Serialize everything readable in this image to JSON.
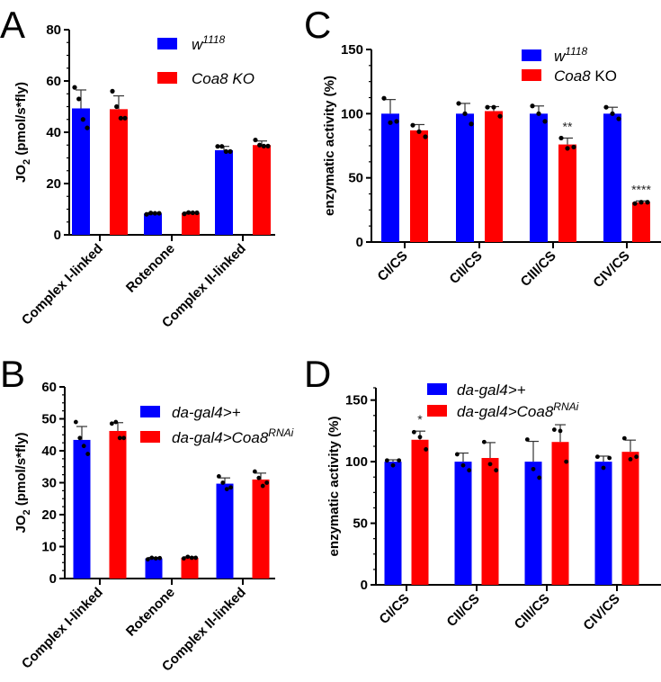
{
  "colors": {
    "control": "#0000ff",
    "mutant": "#ff0000",
    "points": "#000000"
  },
  "chart_data": [
    {
      "panel": "A",
      "type": "bar",
      "ylabel": "JO2 (pmol/s*fly)",
      "ylabel_main": "JO",
      "ylabel_sub": "2",
      "ylabel_rest": " (pmol/s*fly)",
      "ylim": [
        0,
        80
      ],
      "yticks": [
        0,
        20,
        40,
        60,
        80
      ],
      "categories": [
        "Complex I-linked",
        "Rotenone",
        "Complex II-linked"
      ],
      "legend_position": "top-center",
      "series": [
        {
          "name": "w1118",
          "legend": {
            "text": "w",
            "sup": "1118",
            "rest": ""
          },
          "values": [
            49.3,
            8.3,
            33.0
          ],
          "errors": [
            7.2,
            0.3,
            1.5
          ],
          "points": [
            [
              57.5,
              53,
              45,
              41.7
            ],
            [
              8.0,
              8.5,
              8.4,
              8.4
            ],
            [
              34.5,
              34.5,
              32.5,
              32.5
            ]
          ]
        },
        {
          "name": "Coa8 KO",
          "legend": {
            "text": "Coa8 KO",
            "sup": "",
            "rest": ""
          },
          "values": [
            49.0,
            8.5,
            35.0
          ],
          "errors": [
            5.2,
            0.3,
            1.6
          ],
          "points": [
            [
              56,
              50,
              45.5,
              45.5
            ],
            [
              8.2,
              8.7,
              8.6,
              8.6
            ],
            [
              37,
              35,
              34.6,
              34.6
            ]
          ]
        }
      ],
      "annotations": []
    },
    {
      "panel": "C",
      "type": "bar",
      "ylabel": "enzymatic activity (%)",
      "ylabel_main": "enzymatic activity (%)",
      "ylabel_sub": "",
      "ylabel_rest": "",
      "ylim": [
        0,
        150
      ],
      "yticks": [
        0,
        50,
        100,
        150
      ],
      "categories": [
        "CI/CS",
        "CII/CS",
        "CIII/CS",
        "CIV/CS"
      ],
      "legend_position": "top-right",
      "series": [
        {
          "name": "w1118",
          "legend": {
            "text": "w",
            "sup": "1118",
            "rest": ""
          },
          "values": [
            100,
            100,
            100,
            100
          ],
          "errors": [
            11,
            8,
            6,
            5
          ],
          "points": [
            [
              112,
              93,
              94
            ],
            [
              108,
              100,
              92
            ],
            [
              106,
              100,
              94
            ],
            [
              105,
              100,
              96
            ]
          ]
        },
        {
          "name": "Coa8 KO",
          "legend": {
            "text": "Coa8",
            "sup": "",
            "rest": " KO"
          },
          "values": [
            87,
            102,
            76,
            31
          ],
          "errors": [
            4.5,
            3.5,
            5,
            1
          ],
          "points": [
            [
              91,
              86,
              82
            ],
            [
              105,
              105,
              98
            ],
            [
              81,
              73,
              74
            ],
            [
              30,
              31,
              31
            ]
          ]
        }
      ],
      "annotations": [
        {
          "category": "CIII/CS",
          "series": "Coa8 KO",
          "text": "**"
        },
        {
          "category": "CIV/CS",
          "series": "Coa8 KO",
          "text": "****"
        }
      ]
    },
    {
      "panel": "B",
      "type": "bar",
      "ylabel": "JO2 (pmol/s*fly)",
      "ylabel_main": "JO",
      "ylabel_sub": "2",
      "ylabel_rest": " (pmol/s*fly)",
      "ylim": [
        0,
        60
      ],
      "yticks": [
        0,
        10,
        20,
        30,
        40,
        50,
        60
      ],
      "categories": [
        "Complex I-linked",
        "Rotenone",
        "Complex II-linked"
      ],
      "legend_position": "top-center",
      "series": [
        {
          "name": "da-gal4>+",
          "legend": {
            "text": "da-gal4>+",
            "sup": "",
            "rest": ""
          },
          "values": [
            43.4,
            6.3,
            29.7
          ],
          "errors": [
            4.2,
            0.3,
            1.8
          ],
          "points": [
            [
              49,
              44,
              41.5,
              39
            ],
            [
              6.0,
              6.5,
              6.3,
              6.4
            ],
            [
              32,
              30,
              28,
              28.5
            ]
          ]
        },
        {
          "name": "da-gal4>Coa8RNAi",
          "legend": {
            "text": "da-gal4>Coa8",
            "sup": "RNAi",
            "rest": ""
          },
          "values": [
            46.2,
            6.5,
            31.0
          ],
          "errors": [
            2.6,
            0.3,
            2.0
          ],
          "points": [
            [
              48.5,
              49,
              44,
              44
            ],
            [
              6.3,
              6.8,
              6.5,
              6.5
            ],
            [
              33.5,
              31.5,
              29,
              30
            ]
          ]
        }
      ],
      "annotations": []
    },
    {
      "panel": "D",
      "type": "bar",
      "ylabel": "enzymatic activity (%)",
      "ylabel_main": "enzymatic activity (%)",
      "ylabel_sub": "",
      "ylabel_rest": "",
      "ylim": [
        0,
        160
      ],
      "yticks": [
        0,
        50,
        100,
        150
      ],
      "categories": [
        "CI/CS",
        "CII/CS",
        "CIII/CS",
        "CIV/CS"
      ],
      "legend_position": "top-center",
      "series": [
        {
          "name": "da-gal4>+",
          "legend": {
            "text": "da-gal4>+",
            "sup": "",
            "rest": ""
          },
          "values": [
            100,
            100,
            100,
            100
          ],
          "errors": [
            1.5,
            7,
            16.5,
            4.5
          ],
          "points": [
            [
              101,
              97,
              101
            ],
            [
              106,
              97,
              93
            ],
            [
              118,
              94,
              87
            ],
            [
              104,
              95,
              103
            ]
          ]
        },
        {
          "name": "da-gal4>Coa8RNAi",
          "legend": {
            "text": "da-gal4>Coa8",
            "sup": "RNAi",
            "rest": ""
          },
          "values": [
            117.8,
            103,
            116,
            108
          ],
          "errors": [
            7,
            12.5,
            14,
            9.5
          ],
          "points": [
            [
              124,
              120,
              110
            ],
            [
              116,
              98,
              93
            ],
            [
              126,
              125,
              100
            ],
            [
              119,
              102,
              104
            ]
          ]
        }
      ],
      "annotations": [
        {
          "category": "CI/CS",
          "series": "da-gal4>Coa8RNAi",
          "text": "*"
        }
      ]
    }
  ]
}
